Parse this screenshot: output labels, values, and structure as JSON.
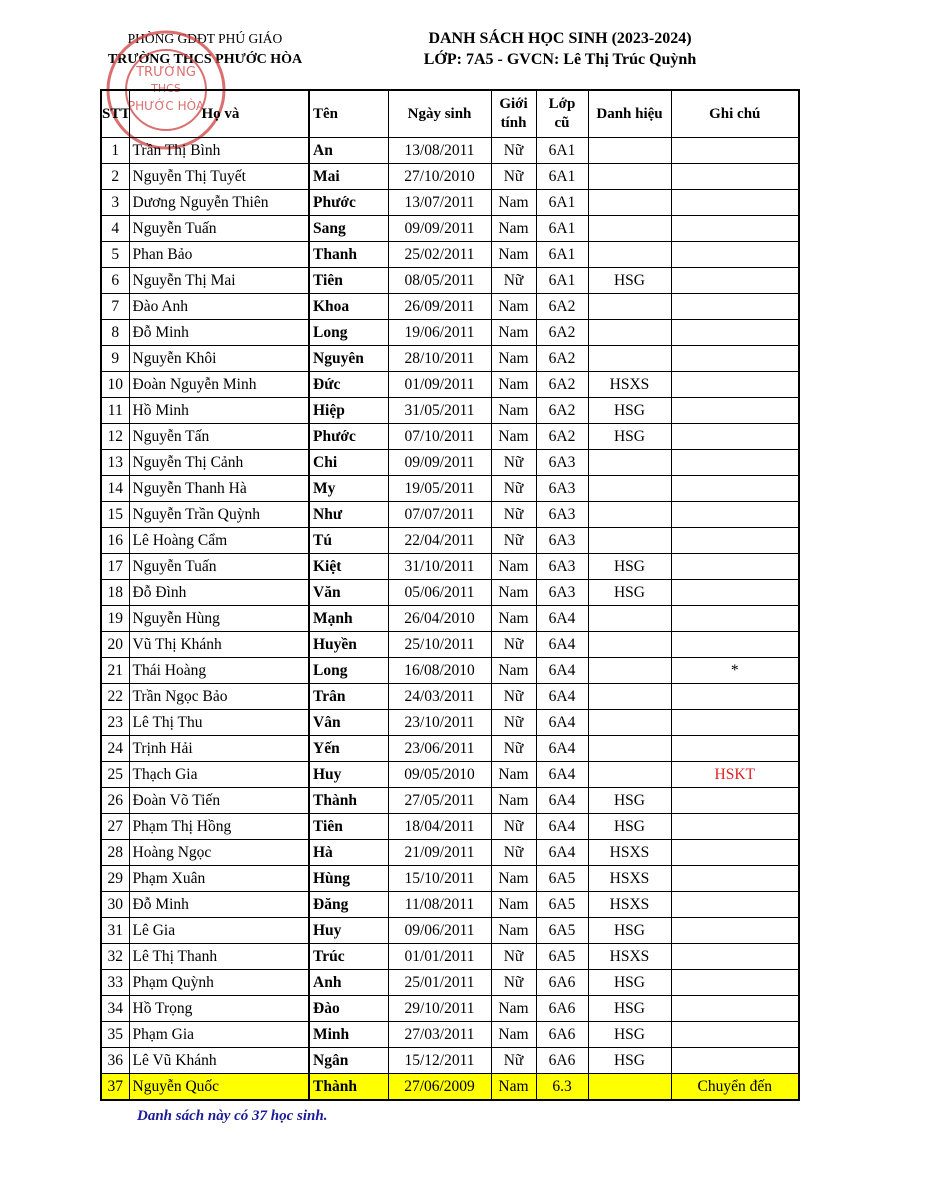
{
  "header": {
    "department": "PHÒNG GDĐT PHÚ GIÁO",
    "school": "TRƯỜNG THCS PHƯỚC HÒA",
    "title": "DANH SÁCH HỌC SINH (2023-2024)",
    "subtitle": "LỚP: 7A5 - GVCN: Lê Thị Trúc Quỳnh"
  },
  "stamp": {
    "text_center": "TRƯỜNG THCS PHƯỚC HÒA",
    "color": "#d04040"
  },
  "table": {
    "columns": [
      "STT",
      "Họ và",
      "Tên",
      "Ngày sinh",
      "Giới tính",
      "Lớp cũ",
      "Danh hiệu",
      "Ghi chú"
    ],
    "highlight_color": "#ffff00",
    "note_red_color": "#e02020",
    "rows": [
      [
        "1",
        "Trần Thị Bình",
        "An",
        "13/08/2011",
        "Nữ",
        "6A1",
        "",
        ""
      ],
      [
        "2",
        "Nguyễn Thị Tuyết",
        "Mai",
        "27/10/2010",
        "Nữ",
        "6A1",
        "",
        ""
      ],
      [
        "3",
        "Dương Nguyễn Thiên",
        "Phước",
        "13/07/2011",
        "Nam",
        "6A1",
        "",
        ""
      ],
      [
        "4",
        "Nguyễn Tuấn",
        "Sang",
        "09/09/2011",
        "Nam",
        "6A1",
        "",
        ""
      ],
      [
        "5",
        "Phan Bảo",
        "Thanh",
        "25/02/2011",
        "Nam",
        "6A1",
        "",
        ""
      ],
      [
        "6",
        "Nguyễn Thị Mai",
        "Tiên",
        "08/05/2011",
        "Nữ",
        "6A1",
        "HSG",
        ""
      ],
      [
        "7",
        "Đào Anh",
        "Khoa",
        "26/09/2011",
        "Nam",
        "6A2",
        "",
        ""
      ],
      [
        "8",
        "Đỗ Minh",
        "Long",
        "19/06/2011",
        "Nam",
        "6A2",
        "",
        ""
      ],
      [
        "9",
        "Nguyễn Khôi",
        "Nguyên",
        "28/10/2011",
        "Nam",
        "6A2",
        "",
        ""
      ],
      [
        "10",
        "Đoàn Nguyễn Minh",
        "Đức",
        "01/09/2011",
        "Nam",
        "6A2",
        "HSXS",
        ""
      ],
      [
        "11",
        "Hồ Minh",
        "Hiệp",
        "31/05/2011",
        "Nam",
        "6A2",
        "HSG",
        ""
      ],
      [
        "12",
        "Nguyễn Tấn",
        "Phước",
        "07/10/2011",
        "Nam",
        "6A2",
        "HSG",
        ""
      ],
      [
        "13",
        "Nguyễn Thị Cảnh",
        "Chi",
        "09/09/2011",
        "Nữ",
        "6A3",
        "",
        ""
      ],
      [
        "14",
        "Nguyễn Thanh Hà",
        "My",
        "19/05/2011",
        "Nữ",
        "6A3",
        "",
        ""
      ],
      [
        "15",
        "Nguyễn Trần Quỳnh",
        "Như",
        "07/07/2011",
        "Nữ",
        "6A3",
        "",
        ""
      ],
      [
        "16",
        "Lê Hoàng Cẩm",
        "Tú",
        "22/04/2011",
        "Nữ",
        "6A3",
        "",
        ""
      ],
      [
        "17",
        "Nguyễn Tuấn",
        "Kiệt",
        "31/10/2011",
        "Nam",
        "6A3",
        "HSG",
        ""
      ],
      [
        "18",
        "Đỗ Đình",
        "Văn",
        "05/06/2011",
        "Nam",
        "6A3",
        "HSG",
        ""
      ],
      [
        "19",
        "Nguyễn Hùng",
        "Mạnh",
        "26/04/2010",
        "Nam",
        "6A4",
        "",
        ""
      ],
      [
        "20",
        "Vũ Thị Khánh",
        "Huyền",
        "25/10/2011",
        "Nữ",
        "6A4",
        "",
        ""
      ],
      [
        "21",
        "Thái Hoàng",
        "Long",
        "16/08/2010",
        "Nam",
        "6A4",
        "",
        "*"
      ],
      [
        "22",
        "Trần Ngọc Bảo",
        "Trân",
        "24/03/2011",
        "Nữ",
        "6A4",
        "",
        ""
      ],
      [
        "23",
        "Lê Thị Thu",
        "Vân",
        "23/10/2011",
        "Nữ",
        "6A4",
        "",
        ""
      ],
      [
        "24",
        "Trịnh Hải",
        "Yến",
        "23/06/2011",
        "Nữ",
        "6A4",
        "",
        ""
      ],
      [
        "25",
        "Thạch Gia",
        "Huy",
        "09/05/2010",
        "Nam",
        "6A4",
        "",
        "HSKT"
      ],
      [
        "26",
        "Đoàn Võ Tiến",
        "Thành",
        "27/05/2011",
        "Nam",
        "6A4",
        "HSG",
        ""
      ],
      [
        "27",
        "Phạm Thị Hồng",
        "Tiên",
        "18/04/2011",
        "Nữ",
        "6A4",
        "HSG",
        ""
      ],
      [
        "28",
        "Hoàng Ngọc",
        "Hà",
        "21/09/2011",
        "Nữ",
        "6A4",
        "HSXS",
        ""
      ],
      [
        "29",
        "Phạm Xuân",
        "Hùng",
        "15/10/2011",
        "Nam",
        "6A5",
        "HSXS",
        ""
      ],
      [
        "30",
        "Đỗ Minh",
        "Đăng",
        "11/08/2011",
        "Nam",
        "6A5",
        "HSXS",
        ""
      ],
      [
        "31",
        "Lê Gia",
        "Huy",
        "09/06/2011",
        "Nam",
        "6A5",
        "HSG",
        ""
      ],
      [
        "32",
        "Lê Thị Thanh",
        "Trúc",
        "01/01/2011",
        "Nữ",
        "6A5",
        "HSXS",
        ""
      ],
      [
        "33",
        "Phạm Quỳnh",
        "Anh",
        "25/01/2011",
        "Nữ",
        "6A6",
        "HSG",
        ""
      ],
      [
        "34",
        "Hồ Trọng",
        "Đào",
        "29/10/2011",
        "Nam",
        "6A6",
        "HSG",
        ""
      ],
      [
        "35",
        "Phạm Gia",
        "Minh",
        "27/03/2011",
        "Nam",
        "6A6",
        "HSG",
        ""
      ],
      [
        "36",
        "Lê Vũ Khánh",
        "Ngân",
        "15/12/2011",
        "Nữ",
        "6A6",
        "HSG",
        ""
      ],
      [
        "37",
        "Nguyễn Quốc",
        "Thành",
        "27/06/2009",
        "Nam",
        "6.3",
        "",
        "Chuyển đến"
      ]
    ],
    "highlighted_rows": [
      "37"
    ],
    "red_notes": [
      "HSKT"
    ]
  },
  "footer": "Danh sách này có 37 học sinh."
}
